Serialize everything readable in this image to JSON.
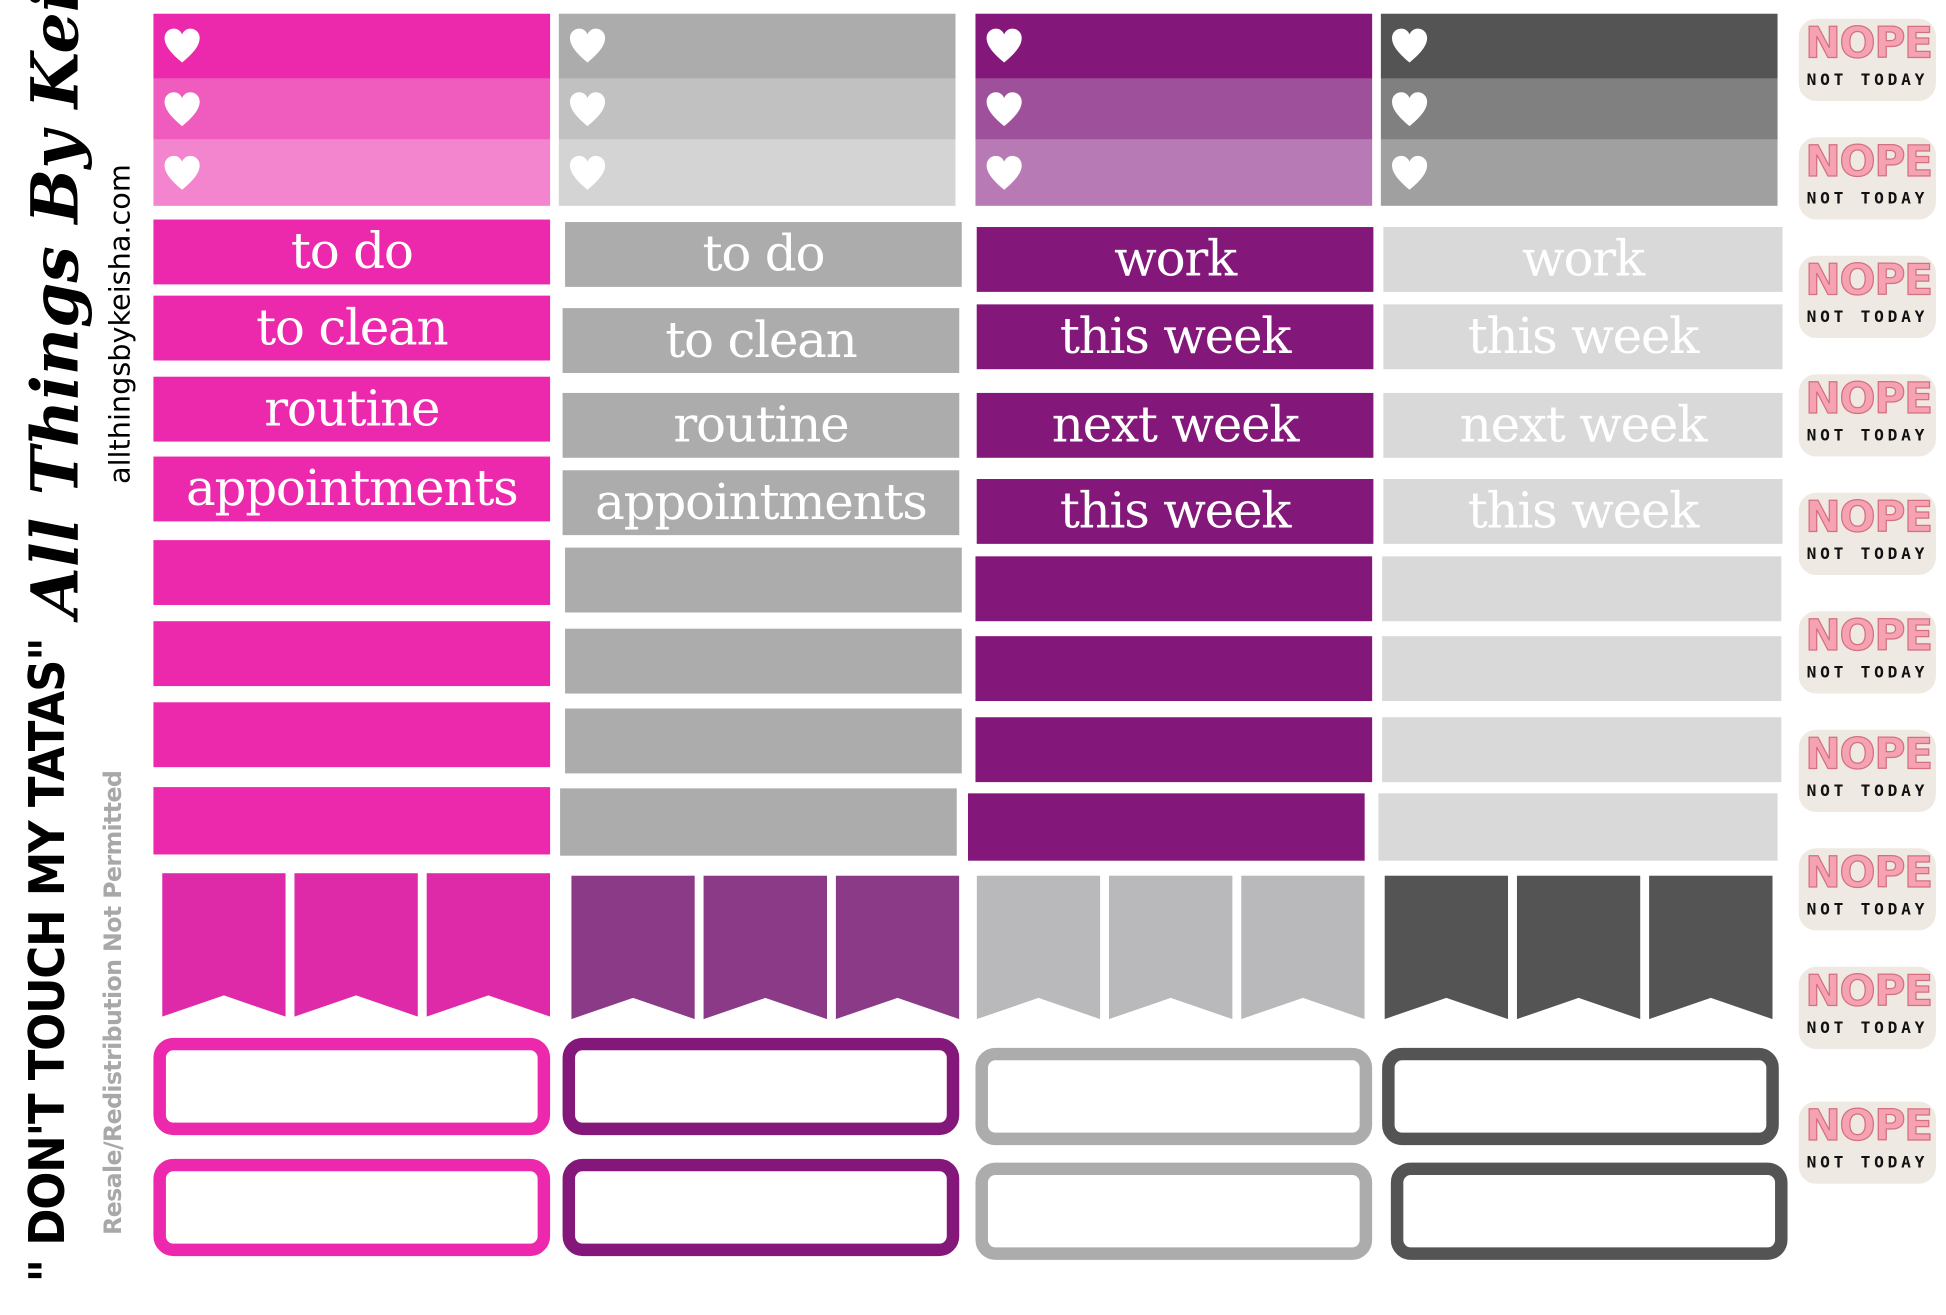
{
  "brand": {
    "name": "All Things By Keisha",
    "website": "allthingsbykeisha.com",
    "sheet_title": "\" DON'T TOUCH MY TATAS\"",
    "notice": "Resale/Redistribution Not Permitted"
  },
  "colors": {
    "pink": "#ec28ac",
    "pink_mid": "#ef5cbd",
    "pink_light": "#f385cf",
    "gray": "#acacac",
    "gray_mid": "#c1c1c1",
    "gray_light": "#d4d4d4",
    "purple": "#84187a",
    "purple_mid": "#9e519a",
    "purple_light": "#b87ab4",
    "dark": "#545454",
    "dark_mid": "#808080",
    "dark_light": "#a0a0a0",
    "pale_gray": "#d9d9d9"
  },
  "columns": [
    {
      "labels": [
        "to do",
        "to clean",
        "routine",
        "appointments"
      ]
    },
    {
      "labels": [
        "to do",
        "to clean",
        "routine",
        "appointments"
      ]
    },
    {
      "labels": [
        "work",
        "this week",
        "next week",
        "this week"
      ]
    },
    {
      "labels": [
        "work",
        "this week",
        "next week",
        "this week"
      ]
    }
  ],
  "stickers": {
    "heart_icon": "heart-icon",
    "nope": {
      "title": "NOPE",
      "subtitle": "NOT TODAY",
      "count": 10
    }
  }
}
